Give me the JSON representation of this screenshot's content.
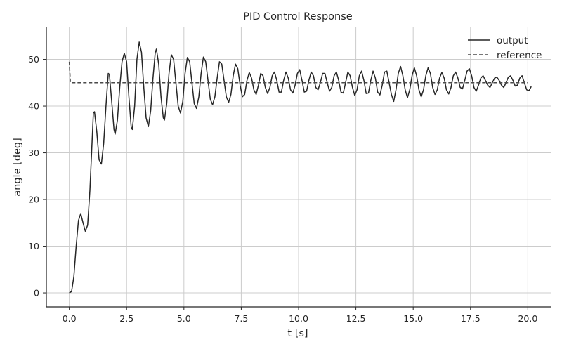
{
  "chart_data": {
    "type": "line",
    "title": "PID Control Response",
    "xlabel": "t [s]",
    "ylabel": "angle [deg]",
    "xlim": [
      -1.0,
      21.0
    ],
    "ylim": [
      -3.0,
      57.0
    ],
    "x_ticks": [
      0.0,
      2.5,
      5.0,
      7.5,
      10.0,
      12.5,
      15.0,
      17.5,
      20.0
    ],
    "x_tick_labels": [
      "0.0",
      "2.5",
      "5.0",
      "7.5",
      "10.0",
      "12.5",
      "15.0",
      "17.5",
      "20.0"
    ],
    "y_ticks": [
      0,
      10,
      20,
      30,
      40,
      50
    ],
    "y_tick_labels": [
      "0",
      "10",
      "20",
      "30",
      "40",
      "50"
    ],
    "grid": true,
    "legend": {
      "placement": "top-right"
    },
    "series": [
      {
        "name": "output",
        "color": "#262626",
        "style": "solid",
        "points": [
          [
            0.0,
            0.0
          ],
          [
            0.1,
            0.3
          ],
          [
            0.2,
            3.5
          ],
          [
            0.3,
            10.0
          ],
          [
            0.4,
            15.5
          ],
          [
            0.5,
            17.0
          ],
          [
            0.6,
            15.0
          ],
          [
            0.7,
            13.2
          ],
          [
            0.8,
            14.5
          ],
          [
            0.9,
            22.0
          ],
          [
            1.0,
            33.0
          ],
          [
            1.05,
            38.5
          ],
          [
            1.1,
            38.8
          ],
          [
            1.2,
            34.5
          ],
          [
            1.3,
            28.5
          ],
          [
            1.4,
            27.6
          ],
          [
            1.5,
            32.0
          ],
          [
            1.6,
            40.0
          ],
          [
            1.7,
            47.0
          ],
          [
            1.75,
            46.8
          ],
          [
            1.85,
            41.0
          ],
          [
            1.95,
            35.0
          ],
          [
            2.0,
            34.0
          ],
          [
            2.1,
            37.0
          ],
          [
            2.2,
            44.0
          ],
          [
            2.3,
            49.5
          ],
          [
            2.4,
            51.3
          ],
          [
            2.5,
            49.5
          ],
          [
            2.6,
            42.0
          ],
          [
            2.7,
            35.5
          ],
          [
            2.75,
            35.0
          ],
          [
            2.85,
            40.0
          ],
          [
            2.95,
            50.0
          ],
          [
            3.05,
            53.7
          ],
          [
            3.15,
            51.5
          ],
          [
            3.25,
            44.0
          ],
          [
            3.35,
            37.5
          ],
          [
            3.45,
            35.6
          ],
          [
            3.55,
            39.0
          ],
          [
            3.65,
            46.0
          ],
          [
            3.75,
            51.5
          ],
          [
            3.8,
            52.2
          ],
          [
            3.9,
            49.0
          ],
          [
            4.0,
            42.0
          ],
          [
            4.1,
            37.5
          ],
          [
            4.15,
            37.0
          ],
          [
            4.25,
            40.5
          ],
          [
            4.35,
            47.0
          ],
          [
            4.45,
            51.0
          ],
          [
            4.55,
            50.0
          ],
          [
            4.65,
            45.0
          ],
          [
            4.75,
            40.0
          ],
          [
            4.85,
            38.5
          ],
          [
            4.95,
            41.0
          ],
          [
            5.05,
            47.0
          ],
          [
            5.15,
            50.4
          ],
          [
            5.25,
            49.5
          ],
          [
            5.35,
            45.0
          ],
          [
            5.45,
            40.5
          ],
          [
            5.55,
            39.5
          ],
          [
            5.65,
            42.0
          ],
          [
            5.75,
            47.0
          ],
          [
            5.85,
            50.5
          ],
          [
            5.95,
            49.5
          ],
          [
            6.05,
            45.5
          ],
          [
            6.15,
            41.5
          ],
          [
            6.25,
            40.3
          ],
          [
            6.35,
            42.0
          ],
          [
            6.45,
            46.0
          ],
          [
            6.55,
            49.5
          ],
          [
            6.65,
            49.0
          ],
          [
            6.75,
            45.5
          ],
          [
            6.85,
            42.0
          ],
          [
            6.95,
            40.8
          ],
          [
            7.05,
            42.5
          ],
          [
            7.15,
            46.5
          ],
          [
            7.25,
            49.0
          ],
          [
            7.35,
            48.0
          ],
          [
            7.45,
            44.5
          ],
          [
            7.55,
            42.0
          ],
          [
            7.65,
            42.5
          ],
          [
            7.75,
            45.5
          ],
          [
            7.85,
            47.2
          ],
          [
            7.95,
            46.0
          ],
          [
            8.05,
            43.5
          ],
          [
            8.15,
            42.5
          ],
          [
            8.25,
            44.5
          ],
          [
            8.35,
            47.0
          ],
          [
            8.45,
            46.5
          ],
          [
            8.55,
            44.0
          ],
          [
            8.65,
            42.7
          ],
          [
            8.75,
            44.0
          ],
          [
            8.85,
            46.5
          ],
          [
            8.95,
            47.3
          ],
          [
            9.05,
            45.5
          ],
          [
            9.15,
            43.0
          ],
          [
            9.25,
            43.0
          ],
          [
            9.35,
            45.5
          ],
          [
            9.45,
            47.3
          ],
          [
            9.55,
            46.0
          ],
          [
            9.65,
            43.5
          ],
          [
            9.75,
            42.8
          ],
          [
            9.85,
            44.5
          ],
          [
            9.95,
            47.0
          ],
          [
            10.05,
            47.8
          ],
          [
            10.15,
            45.5
          ],
          [
            10.25,
            43.0
          ],
          [
            10.35,
            43.2
          ],
          [
            10.45,
            45.5
          ],
          [
            10.55,
            47.3
          ],
          [
            10.65,
            46.5
          ],
          [
            10.75,
            44.0
          ],
          [
            10.85,
            43.5
          ],
          [
            10.95,
            45.0
          ],
          [
            11.05,
            47.0
          ],
          [
            11.15,
            47.0
          ],
          [
            11.25,
            45.0
          ],
          [
            11.35,
            43.2
          ],
          [
            11.45,
            44.0
          ],
          [
            11.55,
            46.5
          ],
          [
            11.65,
            47.3
          ],
          [
            11.75,
            45.5
          ],
          [
            11.85,
            43.0
          ],
          [
            11.95,
            42.8
          ],
          [
            12.05,
            45.0
          ],
          [
            12.15,
            47.3
          ],
          [
            12.25,
            46.5
          ],
          [
            12.35,
            44.0
          ],
          [
            12.45,
            42.3
          ],
          [
            12.55,
            43.5
          ],
          [
            12.65,
            46.5
          ],
          [
            12.75,
            47.5
          ],
          [
            12.85,
            45.5
          ],
          [
            12.95,
            42.7
          ],
          [
            13.05,
            42.8
          ],
          [
            13.15,
            45.5
          ],
          [
            13.25,
            47.5
          ],
          [
            13.35,
            46.0
          ],
          [
            13.45,
            43.0
          ],
          [
            13.55,
            42.4
          ],
          [
            13.65,
            44.5
          ],
          [
            13.75,
            47.3
          ],
          [
            13.85,
            47.5
          ],
          [
            13.95,
            45.0
          ],
          [
            14.05,
            42.5
          ],
          [
            14.15,
            41.0
          ],
          [
            14.25,
            43.5
          ],
          [
            14.35,
            47.0
          ],
          [
            14.45,
            48.5
          ],
          [
            14.55,
            46.5
          ],
          [
            14.65,
            43.5
          ],
          [
            14.75,
            41.8
          ],
          [
            14.85,
            43.5
          ],
          [
            14.95,
            46.5
          ],
          [
            15.05,
            48.2
          ],
          [
            15.15,
            46.5
          ],
          [
            15.25,
            43.5
          ],
          [
            15.35,
            42.0
          ],
          [
            15.45,
            43.5
          ],
          [
            15.55,
            46.5
          ],
          [
            15.65,
            48.2
          ],
          [
            15.75,
            47.0
          ],
          [
            15.85,
            44.0
          ],
          [
            15.95,
            42.5
          ],
          [
            16.05,
            43.5
          ],
          [
            16.15,
            46.0
          ],
          [
            16.25,
            47.2
          ],
          [
            16.35,
            46.0
          ],
          [
            16.45,
            43.5
          ],
          [
            16.55,
            42.6
          ],
          [
            16.65,
            44.0
          ],
          [
            16.75,
            46.5
          ],
          [
            16.85,
            47.3
          ],
          [
            16.95,
            46.0
          ],
          [
            17.05,
            44.0
          ],
          [
            17.15,
            43.7
          ],
          [
            17.25,
            45.5
          ],
          [
            17.35,
            47.5
          ],
          [
            17.45,
            48.0
          ],
          [
            17.55,
            46.5
          ],
          [
            17.65,
            44.0
          ],
          [
            17.75,
            43.2
          ],
          [
            17.85,
            44.5
          ],
          [
            17.95,
            46.0
          ],
          [
            18.05,
            46.5
          ],
          [
            18.15,
            45.5
          ],
          [
            18.25,
            44.5
          ],
          [
            18.35,
            44.0
          ],
          [
            18.45,
            45.0
          ],
          [
            18.55,
            46.0
          ],
          [
            18.65,
            46.2
          ],
          [
            18.75,
            45.5
          ],
          [
            18.85,
            44.5
          ],
          [
            18.95,
            44.0
          ],
          [
            19.05,
            45.0
          ],
          [
            19.15,
            46.2
          ],
          [
            19.25,
            46.5
          ],
          [
            19.35,
            45.5
          ],
          [
            19.45,
            44.3
          ],
          [
            19.55,
            44.5
          ],
          [
            19.65,
            46.0
          ],
          [
            19.75,
            46.5
          ],
          [
            19.85,
            45.0
          ],
          [
            19.95,
            43.5
          ],
          [
            20.05,
            43.3
          ],
          [
            20.15,
            44.2
          ]
        ]
      },
      {
        "name": "reference",
        "color": "#4a4a4a",
        "style": "dashed",
        "points": [
          [
            0.0,
            49.5
          ],
          [
            0.05,
            45.0
          ],
          [
            20.0,
            45.0
          ]
        ]
      }
    ]
  }
}
